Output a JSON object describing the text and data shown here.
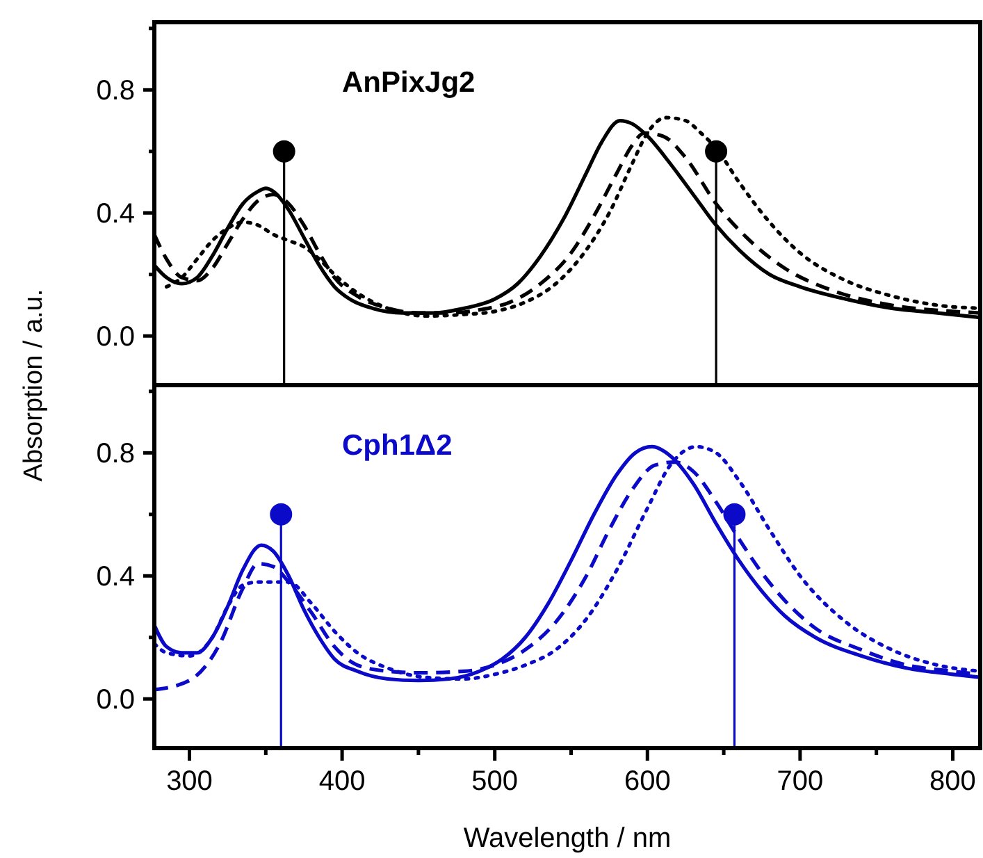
{
  "chart_data": [
    {
      "type": "line",
      "title": "AnPixJg2",
      "ylabel": "Absorption / a.u.",
      "xlim": [
        277,
        818
      ],
      "ylim": [
        -0.16,
        1.02
      ],
      "yticks": [
        {
          "value": 0,
          "label": "0.0"
        },
        {
          "value": 0.2,
          "label": null
        },
        {
          "value": 0.4,
          "label": "0.4"
        },
        {
          "value": 0.6,
          "label": null
        },
        {
          "value": 0.8,
          "label": "0.8"
        },
        {
          "value": 1.0,
          "label": null
        }
      ],
      "tick_labels": "y",
      "grid": false,
      "series": [
        {
          "color": "#000000",
          "line_style": "solid",
          "x": [
            277,
            285,
            295,
            305,
            315,
            325,
            335,
            345,
            350,
            355,
            365,
            375,
            385,
            395,
            405,
            420,
            440,
            460,
            480,
            500,
            515,
            530,
            545,
            560,
            570,
            582,
            590,
            600,
            615,
            630,
            645,
            660,
            680,
            700,
            730,
            760,
            790,
            818
          ],
          "values": [
            0.23,
            0.19,
            0.17,
            0.19,
            0.26,
            0.35,
            0.43,
            0.47,
            0.48,
            0.47,
            0.41,
            0.32,
            0.23,
            0.16,
            0.12,
            0.09,
            0.075,
            0.075,
            0.09,
            0.12,
            0.17,
            0.26,
            0.38,
            0.53,
            0.63,
            0.7,
            0.69,
            0.65,
            0.56,
            0.46,
            0.36,
            0.28,
            0.2,
            0.16,
            0.12,
            0.09,
            0.075,
            0.06
          ]
        },
        {
          "color": "#000000",
          "line_style": "dashed",
          "x": [
            277,
            285,
            295,
            305,
            315,
            325,
            335,
            345,
            355,
            365,
            375,
            385,
            395,
            410,
            430,
            450,
            470,
            490,
            510,
            530,
            550,
            565,
            580,
            590,
            598,
            610,
            625,
            645,
            665,
            690,
            720,
            760,
            800,
            818
          ],
          "values": [
            0.33,
            0.25,
            0.19,
            0.18,
            0.22,
            0.3,
            0.38,
            0.44,
            0.46,
            0.43,
            0.36,
            0.27,
            0.19,
            0.13,
            0.09,
            0.075,
            0.075,
            0.085,
            0.11,
            0.17,
            0.27,
            0.39,
            0.53,
            0.62,
            0.66,
            0.65,
            0.58,
            0.43,
            0.32,
            0.22,
            0.15,
            0.1,
            0.08,
            0.075
          ]
        },
        {
          "color": "#000000",
          "line_style": "dotted",
          "x": [
            285,
            295,
            305,
            315,
            325,
            335,
            345,
            355,
            365,
            375,
            385,
            395,
            410,
            430,
            455,
            480,
            500,
            520,
            540,
            560,
            575,
            590,
            600,
            612,
            625,
            635,
            645,
            660,
            680,
            700,
            730,
            760,
            790,
            818
          ],
          "values": [
            0.16,
            0.19,
            0.25,
            0.31,
            0.35,
            0.37,
            0.36,
            0.33,
            0.31,
            0.29,
            0.25,
            0.2,
            0.14,
            0.09,
            0.065,
            0.07,
            0.08,
            0.11,
            0.17,
            0.28,
            0.4,
            0.56,
            0.66,
            0.71,
            0.7,
            0.66,
            0.61,
            0.5,
            0.37,
            0.27,
            0.18,
            0.13,
            0.1,
            0.09
          ]
        },
        {
          "type": "line",
          "color": "#000000",
          "line_style": "solid",
          "x": [
            362,
            362
          ],
          "values": [
            -0.16,
            0.6
          ]
        },
        {
          "type": "line",
          "color": "#000000",
          "line_style": "solid",
          "x": [
            645,
            645
          ],
          "values": [
            -0.16,
            0.6
          ]
        },
        {
          "type": "scatter",
          "color": "#000000",
          "marker": "circle",
          "x": [
            362,
            645
          ],
          "values": [
            0.6,
            0.6
          ]
        }
      ]
    },
    {
      "type": "line",
      "title": "Cph1Δ2",
      "xlabel": "Wavelength / nm",
      "xlim": [
        277,
        818
      ],
      "ylim": [
        -0.16,
        1.02
      ],
      "xticks": [
        300,
        {
          "value": 350,
          "label": null
        },
        400,
        {
          "value": 450,
          "label": null
        },
        500,
        {
          "value": 550,
          "label": null
        },
        600,
        {
          "value": 650,
          "label": null
        },
        700,
        {
          "value": 750,
          "label": null
        },
        800
      ],
      "yticks": [
        {
          "value": 0,
          "label": "0.0"
        },
        {
          "value": 0.2,
          "label": null
        },
        {
          "value": 0.4,
          "label": "0.4"
        },
        {
          "value": 0.6,
          "label": null
        },
        {
          "value": 0.8,
          "label": "0.8"
        },
        {
          "value": 1.0,
          "label": null
        }
      ],
      "grid": false,
      "series": [
        {
          "color": "#0a0ac8",
          "line_style": "solid",
          "x": [
            277,
            285,
            295,
            305,
            315,
            325,
            335,
            347,
            355,
            365,
            375,
            385,
            395,
            410,
            430,
            450,
            470,
            490,
            505,
            520,
            535,
            550,
            565,
            580,
            592,
            603,
            615,
            630,
            645,
            660,
            675,
            690,
            710,
            740,
            770,
            800,
            818
          ],
          "values": [
            0.24,
            0.17,
            0.15,
            0.15,
            0.2,
            0.3,
            0.42,
            0.5,
            0.48,
            0.4,
            0.29,
            0.2,
            0.13,
            0.09,
            0.065,
            0.06,
            0.065,
            0.09,
            0.13,
            0.2,
            0.31,
            0.45,
            0.6,
            0.73,
            0.8,
            0.82,
            0.79,
            0.7,
            0.57,
            0.45,
            0.35,
            0.27,
            0.2,
            0.14,
            0.1,
            0.08,
            0.07
          ]
        },
        {
          "color": "#0a0ac8",
          "line_style": "dashed",
          "x": [
            277,
            300,
            320,
            335,
            345,
            355,
            365,
            380,
            395,
            410,
            430,
            450,
            480,
            500,
            520,
            540,
            560,
            575,
            590,
            605,
            618,
            630,
            645,
            660,
            675,
            690,
            710,
            740,
            770,
            800,
            818
          ],
          "values": [
            0.03,
            0.06,
            0.18,
            0.36,
            0.44,
            0.43,
            0.38,
            0.28,
            0.17,
            0.11,
            0.09,
            0.085,
            0.09,
            0.11,
            0.16,
            0.25,
            0.4,
            0.55,
            0.68,
            0.76,
            0.77,
            0.74,
            0.64,
            0.52,
            0.41,
            0.32,
            0.23,
            0.16,
            0.11,
            0.09,
            0.08
          ]
        },
        {
          "color": "#0a0ac8",
          "line_style": "dotted",
          "x": [
            277,
            285,
            300,
            315,
            325,
            335,
            345,
            355,
            365,
            380,
            395,
            410,
            430,
            455,
            480,
            500,
            520,
            540,
            560,
            580,
            600,
            615,
            632,
            645,
            660,
            680,
            700,
            730,
            760,
            790,
            818
          ],
          "values": [
            0.18,
            0.15,
            0.14,
            0.2,
            0.3,
            0.37,
            0.38,
            0.38,
            0.38,
            0.31,
            0.22,
            0.15,
            0.1,
            0.07,
            0.065,
            0.08,
            0.11,
            0.16,
            0.26,
            0.42,
            0.62,
            0.76,
            0.82,
            0.8,
            0.71,
            0.55,
            0.4,
            0.25,
            0.16,
            0.11,
            0.09
          ]
        },
        {
          "type": "line",
          "color": "#0a0ac8",
          "line_style": "solid",
          "x": [
            360,
            360
          ],
          "values": [
            -0.16,
            0.6
          ]
        },
        {
          "type": "line",
          "color": "#0a0ac8",
          "line_style": "solid",
          "x": [
            657,
            657
          ],
          "values": [
            -0.16,
            0.6
          ]
        },
        {
          "type": "scatter",
          "color": "#0a0ac8",
          "marker": "circle",
          "x": [
            360,
            657
          ],
          "values": [
            0.6,
            0.6
          ]
        }
      ]
    }
  ]
}
